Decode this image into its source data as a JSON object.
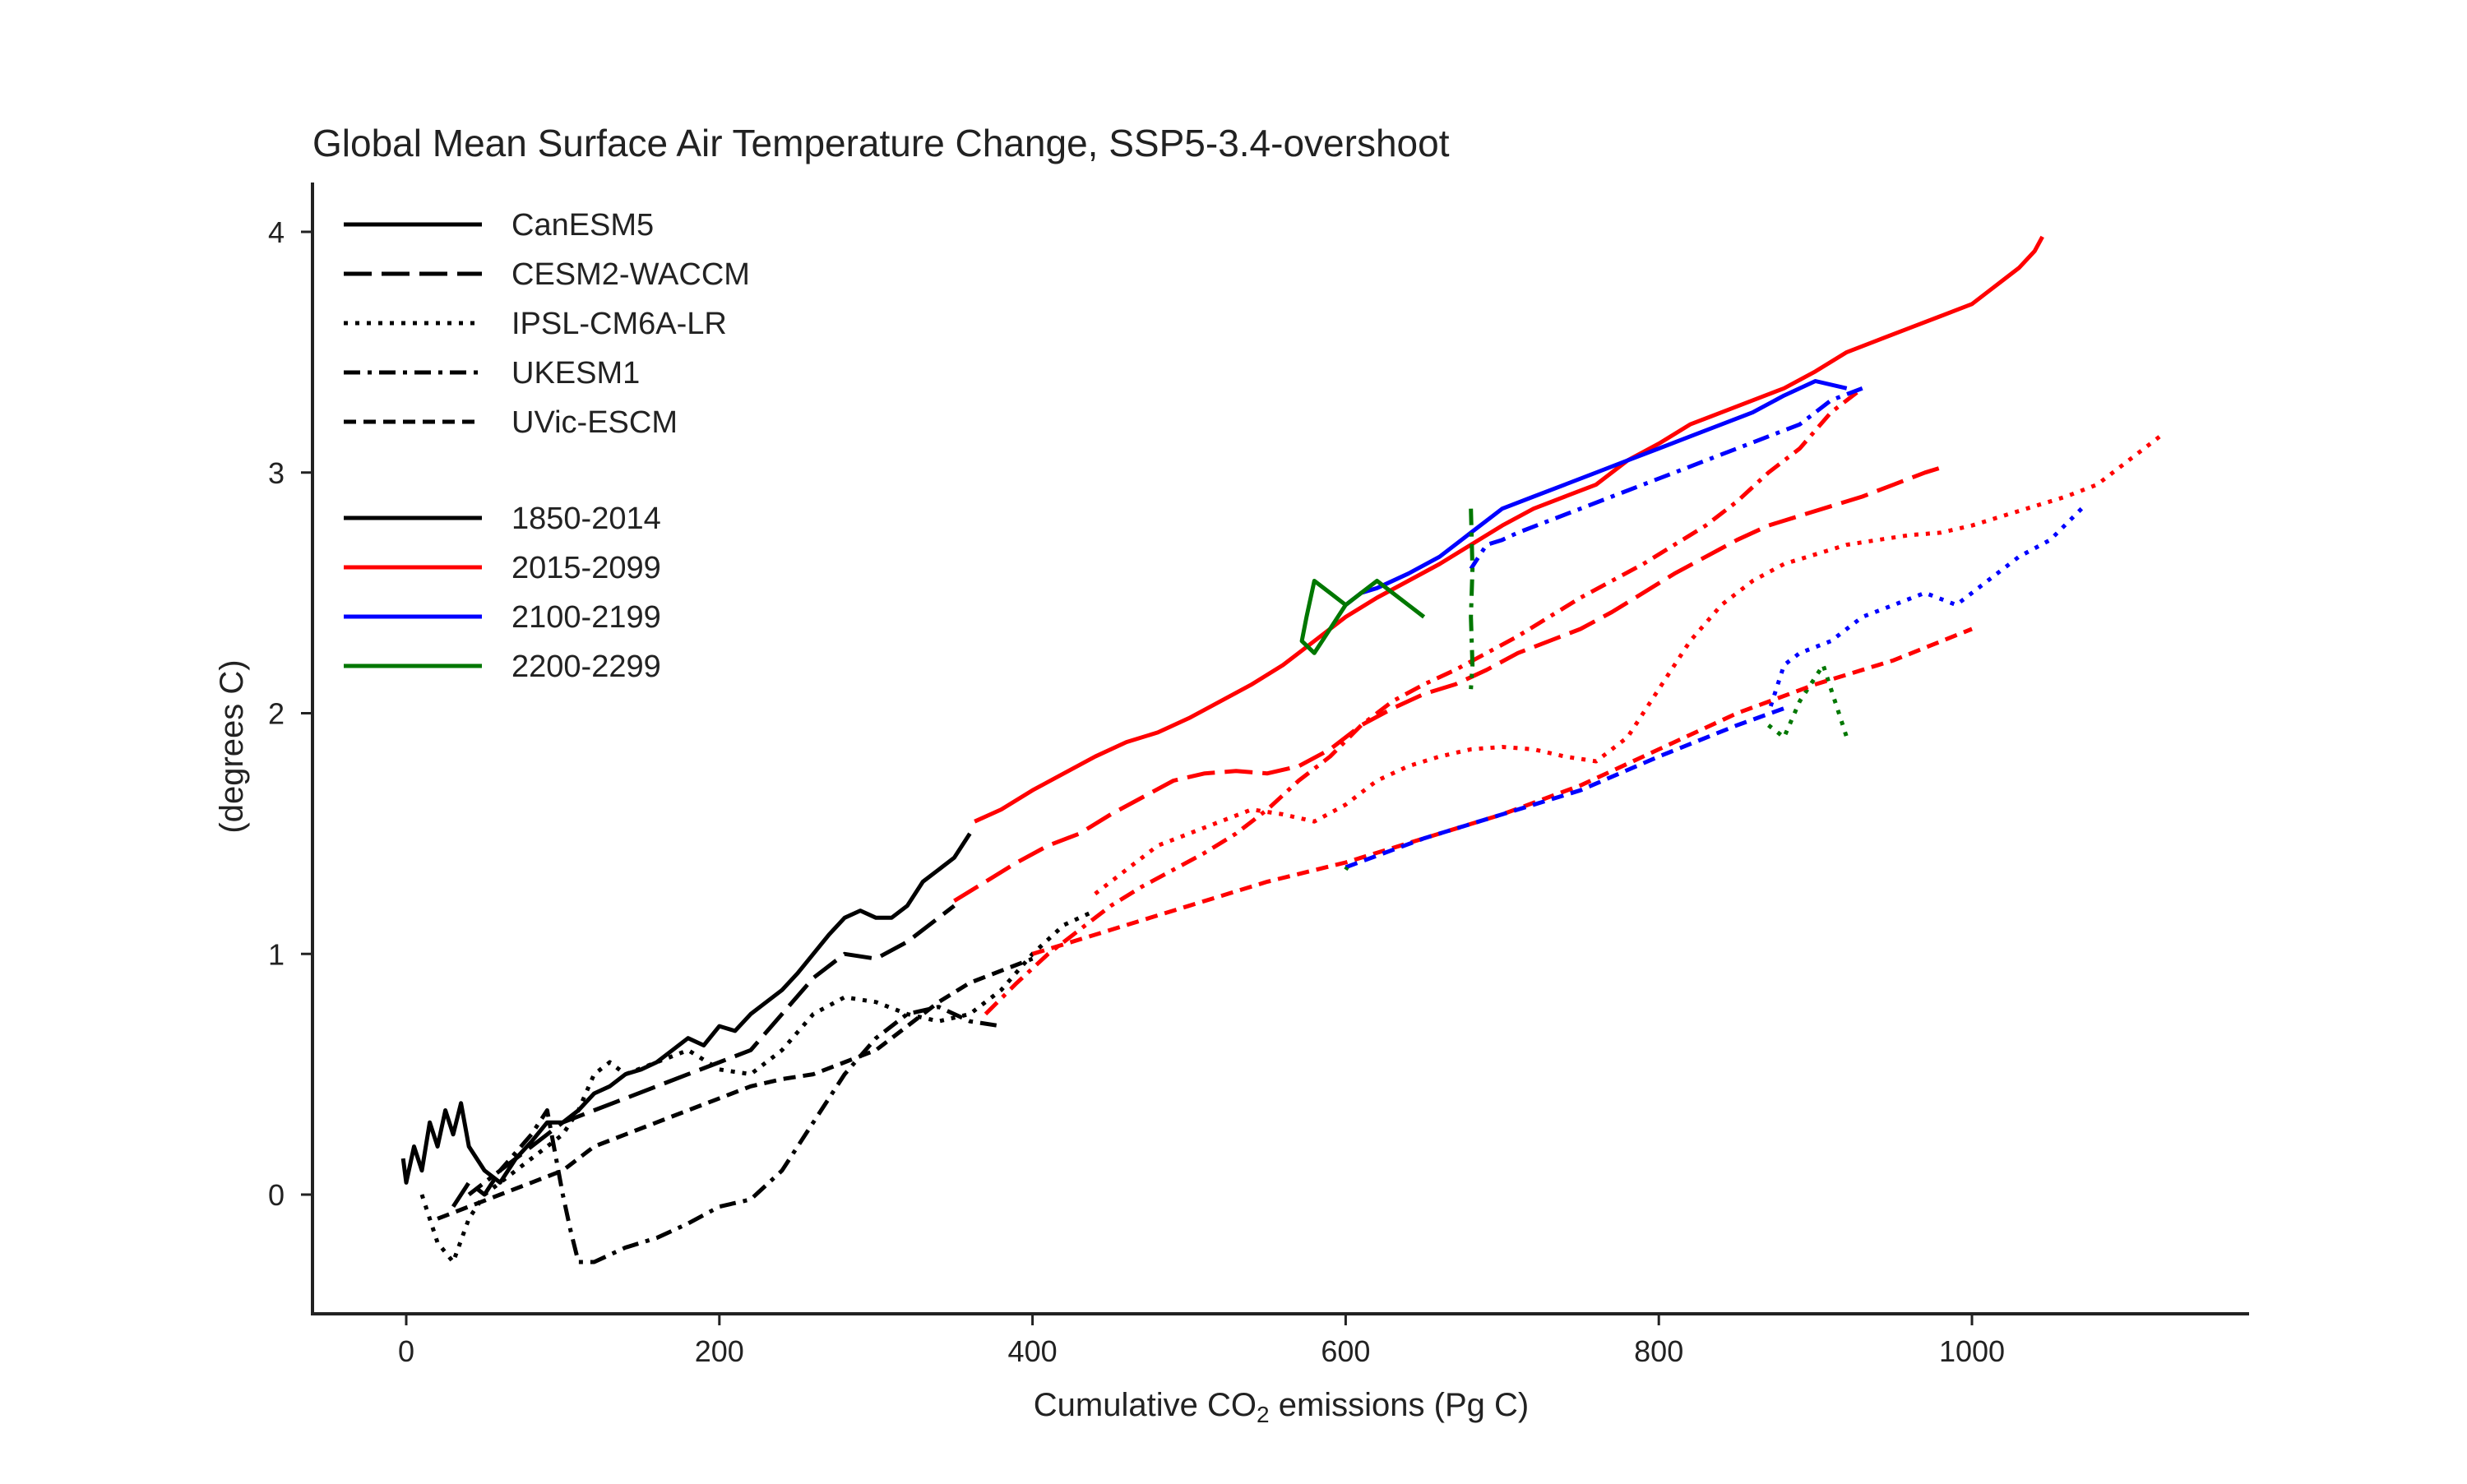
{
  "chart_data": {
    "type": "line",
    "title": "Global Mean Surface Air Temperature Change, SSP5-3.4-overshoot",
    "xlabel_main": "Cumulative CO",
    "xlabel_sub": "2",
    "xlabel_tail": " emissions (Pg C)",
    "ylabel": "(degrees C)",
    "xlim": [
      -60,
      1120
    ],
    "ylim": [
      -0.5,
      4.2
    ],
    "xticks": [
      0,
      200,
      400,
      600,
      800,
      1000
    ],
    "xtick_labels": [
      "0",
      "200",
      "400",
      "600",
      "800",
      "1000"
    ],
    "yticks": [
      0,
      1,
      2,
      3,
      4
    ],
    "ytick_labels": [
      "0",
      "1",
      "2",
      "3",
      "4"
    ],
    "grid": false,
    "legend_placement": "top-left",
    "legend": {
      "models": [
        {
          "name": "CanESM5",
          "style": "solid"
        },
        {
          "name": "CESM2-WACCM",
          "style": "longdash"
        },
        {
          "name": "IPSL-CM6A-LR",
          "style": "dotted"
        },
        {
          "name": "UKESM1",
          "style": "dashdot"
        },
        {
          "name": "UVic-ESCM",
          "style": "dashed"
        }
      ],
      "periods": [
        {
          "name": "1850-2014",
          "color": "#000000"
        },
        {
          "name": "2015-2099",
          "color": "#ff0000"
        },
        {
          "name": "2100-2199",
          "color": "#0000ff"
        },
        {
          "name": "2200-2299",
          "color": "#007700"
        }
      ]
    },
    "series": [
      {
        "model": "CanESM5",
        "period": "1850-2014",
        "x": [
          -2,
          0,
          5,
          10,
          15,
          20,
          25,
          30,
          35,
          40,
          50,
          60,
          70,
          80,
          90,
          100,
          110,
          120,
          130,
          140,
          150,
          160,
          170,
          180,
          190,
          200,
          210,
          220,
          230,
          240,
          250,
          260,
          270,
          280,
          290,
          300,
          310,
          320,
          330,
          340,
          350,
          360
        ],
        "y": [
          0.15,
          0.05,
          0.2,
          0.1,
          0.3,
          0.2,
          0.35,
          0.25,
          0.38,
          0.2,
          0.1,
          0.05,
          0.15,
          0.22,
          0.3,
          0.3,
          0.35,
          0.42,
          0.45,
          0.5,
          0.52,
          0.55,
          0.6,
          0.65,
          0.62,
          0.7,
          0.68,
          0.75,
          0.8,
          0.85,
          0.92,
          1.0,
          1.08,
          1.15,
          1.18,
          1.15,
          1.15,
          1.2,
          1.3,
          1.35,
          1.4,
          1.5
        ]
      },
      {
        "model": "CanESM5",
        "period": "2015-2099",
        "x": [
          363,
          380,
          400,
          420,
          440,
          460,
          480,
          500,
          520,
          540,
          560,
          580,
          600,
          620,
          640,
          660,
          680,
          700,
          720,
          740,
          760,
          780,
          800,
          820,
          840,
          860,
          880,
          900,
          920,
          940,
          960,
          980,
          1000,
          1010,
          1020,
          1030,
          1040,
          1045
        ],
        "y": [
          1.55,
          1.6,
          1.68,
          1.75,
          1.82,
          1.88,
          1.92,
          1.98,
          2.05,
          2.12,
          2.2,
          2.3,
          2.4,
          2.48,
          2.55,
          2.62,
          2.7,
          2.78,
          2.85,
          2.9,
          2.95,
          3.05,
          3.12,
          3.2,
          3.25,
          3.3,
          3.35,
          3.42,
          3.5,
          3.55,
          3.6,
          3.65,
          3.7,
          3.75,
          3.8,
          3.85,
          3.92,
          3.98
        ]
      },
      {
        "model": "CanESM5",
        "period": "2100-2199",
        "x": [
          920,
          900,
          880,
          860,
          840,
          820,
          800,
          780,
          760,
          740,
          720,
          700,
          680,
          660,
          640,
          620,
          610,
          600
        ],
        "y": [
          3.35,
          3.38,
          3.32,
          3.25,
          3.2,
          3.15,
          3.1,
          3.05,
          3.0,
          2.95,
          2.9,
          2.85,
          2.75,
          2.65,
          2.58,
          2.52,
          2.5,
          2.45
        ]
      },
      {
        "model": "CanESM5",
        "period": "2200-2299",
        "x": [
          600,
          590,
          580,
          575,
          572,
          580,
          590,
          600,
          610,
          620,
          630,
          640,
          650
        ],
        "y": [
          2.45,
          2.5,
          2.55,
          2.4,
          2.3,
          2.25,
          2.35,
          2.45,
          2.5,
          2.55,
          2.5,
          2.45,
          2.4
        ]
      },
      {
        "model": "CESM2-WACCM",
        "period": "1850-2014",
        "x": [
          30,
          40,
          50,
          60,
          70,
          80,
          90,
          100,
          120,
          140,
          160,
          180,
          200,
          220,
          240,
          260,
          280,
          300,
          320,
          340,
          350
        ],
        "y": [
          -0.05,
          0.05,
          0.0,
          0.1,
          0.15,
          0.2,
          0.25,
          0.3,
          0.35,
          0.4,
          0.45,
          0.5,
          0.55,
          0.6,
          0.75,
          0.9,
          1.0,
          0.98,
          1.05,
          1.15,
          1.2
        ]
      },
      {
        "model": "CESM2-WACCM",
        "period": "2015-2099",
        "x": [
          350,
          370,
          390,
          410,
          430,
          450,
          470,
          490,
          510,
          530,
          550,
          570,
          590,
          610,
          630,
          650,
          670,
          690,
          710,
          730,
          750,
          770,
          790,
          810,
          830,
          850,
          870,
          890,
          910,
          930,
          950,
          970,
          980
        ],
        "y": [
          1.22,
          1.3,
          1.38,
          1.45,
          1.5,
          1.58,
          1.65,
          1.72,
          1.75,
          1.76,
          1.75,
          1.78,
          1.85,
          1.95,
          2.02,
          2.08,
          2.12,
          2.18,
          2.25,
          2.3,
          2.35,
          2.42,
          2.5,
          2.58,
          2.65,
          2.72,
          2.78,
          2.82,
          2.86,
          2.9,
          2.95,
          3.0,
          3.02
        ]
      },
      {
        "model": "IPSL-CM6A-LR",
        "period": "1850-2014",
        "x": [
          10,
          20,
          30,
          40,
          50,
          60,
          70,
          80,
          90,
          100,
          110,
          120,
          130,
          140,
          160,
          180,
          200,
          220,
          240,
          260,
          280,
          300,
          320,
          340,
          360,
          380,
          400,
          420,
          440
        ],
        "y": [
          0.0,
          -0.2,
          -0.28,
          -0.1,
          0.0,
          0.05,
          0.1,
          0.15,
          0.2,
          0.25,
          0.35,
          0.5,
          0.55,
          0.5,
          0.55,
          0.6,
          0.52,
          0.5,
          0.6,
          0.75,
          0.82,
          0.8,
          0.75,
          0.72,
          0.75,
          0.85,
          1.0,
          1.12,
          1.18
        ]
      },
      {
        "model": "IPSL-CM6A-LR",
        "period": "2015-2099",
        "x": [
          440,
          460,
          480,
          500,
          520,
          540,
          560,
          580,
          600,
          620,
          640,
          660,
          680,
          700,
          720,
          740,
          760,
          780,
          800,
          820,
          840,
          860,
          880,
          900,
          920,
          940,
          960,
          980,
          1000,
          1020,
          1040,
          1060,
          1080,
          1100,
          1120
        ],
        "y": [
          1.25,
          1.35,
          1.45,
          1.5,
          1.55,
          1.6,
          1.58,
          1.55,
          1.62,
          1.72,
          1.78,
          1.82,
          1.85,
          1.86,
          1.85,
          1.82,
          1.8,
          1.9,
          2.1,
          2.3,
          2.45,
          2.55,
          2.62,
          2.66,
          2.7,
          2.72,
          2.74,
          2.75,
          2.78,
          2.82,
          2.86,
          2.9,
          2.95,
          3.05,
          3.15
        ]
      },
      {
        "model": "IPSL-CM6A-LR",
        "period": "2100-2199",
        "x": [
          1070,
          1050,
          1030,
          1010,
          990,
          970,
          950,
          930,
          910,
          890,
          880,
          875,
          870
        ],
        "y": [
          2.85,
          2.72,
          2.65,
          2.55,
          2.45,
          2.5,
          2.45,
          2.4,
          2.3,
          2.25,
          2.2,
          2.1,
          2.0
        ]
      },
      {
        "model": "IPSL-CM6A-LR",
        "period": "2200-2299",
        "x": [
          870,
          880,
          890,
          900,
          905,
          910,
          915,
          920
        ],
        "y": [
          1.95,
          1.9,
          2.05,
          2.15,
          2.2,
          2.1,
          2.0,
          1.9
        ]
      },
      {
        "model": "UKESM1",
        "period": "1850-2014",
        "x": [
          40,
          60,
          80,
          90,
          100,
          105,
          110,
          120,
          140,
          160,
          180,
          200,
          220,
          240,
          260,
          280,
          300,
          320,
          340,
          360,
          380
        ],
        "y": [
          0.0,
          0.1,
          0.25,
          0.35,
          0.0,
          -0.15,
          -0.28,
          -0.28,
          -0.22,
          -0.18,
          -0.12,
          -0.05,
          -0.02,
          0.1,
          0.3,
          0.5,
          0.65,
          0.75,
          0.78,
          0.72,
          0.7
        ]
      },
      {
        "model": "UKESM1",
        "period": "2015-2099",
        "x": [
          370,
          390,
          410,
          430,
          450,
          470,
          490,
          510,
          530,
          550,
          570,
          590,
          610,
          630,
          650,
          670,
          690,
          710,
          730,
          750,
          770,
          790,
          810,
          830,
          850,
          870,
          890,
          910,
          930
        ],
        "y": [
          0.75,
          0.88,
          1.0,
          1.1,
          1.2,
          1.28,
          1.35,
          1.42,
          1.5,
          1.6,
          1.72,
          1.82,
          1.95,
          2.05,
          2.12,
          2.18,
          2.25,
          2.32,
          2.4,
          2.48,
          2.55,
          2.62,
          2.7,
          2.78,
          2.88,
          3.0,
          3.1,
          3.25,
          3.35
        ]
      },
      {
        "model": "UKESM1",
        "period": "2100-2199",
        "x": [
          930,
          910,
          890,
          870,
          850,
          830,
          810,
          790,
          770,
          750,
          730,
          710,
          700,
          690,
          685,
          680
        ],
        "y": [
          3.35,
          3.3,
          3.2,
          3.15,
          3.1,
          3.05,
          3.0,
          2.95,
          2.9,
          2.85,
          2.8,
          2.75,
          2.72,
          2.7,
          2.65,
          2.6
        ]
      },
      {
        "model": "UKESM1",
        "period": "2200-2299",
        "x": [
          680,
          681,
          680,
          681,
          680
        ],
        "y": [
          2.85,
          2.6,
          2.4,
          2.2,
          2.1
        ]
      },
      {
        "model": "UVic-ESCM",
        "period": "1850-2014",
        "x": [
          20,
          40,
          60,
          80,
          100,
          120,
          140,
          160,
          180,
          200,
          220,
          240,
          260,
          280,
          300,
          320,
          340,
          360,
          380,
          400
        ],
        "y": [
          -0.1,
          -0.05,
          0.0,
          0.05,
          0.1,
          0.2,
          0.25,
          0.3,
          0.35,
          0.4,
          0.45,
          0.48,
          0.5,
          0.55,
          0.6,
          0.7,
          0.8,
          0.88,
          0.93,
          0.98
        ]
      },
      {
        "model": "UVic-ESCM",
        "period": "2015-2099",
        "x": [
          400,
          450,
          500,
          550,
          600,
          650,
          700,
          750,
          800,
          850,
          900,
          950,
          1000
        ],
        "y": [
          1.0,
          1.1,
          1.2,
          1.3,
          1.38,
          1.48,
          1.58,
          1.7,
          1.85,
          2.0,
          2.12,
          2.22,
          2.35
        ]
      },
      {
        "model": "UVic-ESCM",
        "period": "2100-2199",
        "x": [
          600,
          650,
          700,
          750,
          800,
          850,
          880
        ],
        "y": [
          1.36,
          1.48,
          1.58,
          1.68,
          1.82,
          1.95,
          2.02
        ]
      },
      {
        "model": "UVic-ESCM",
        "period": "2200-2299",
        "x": [
          600,
          601
        ],
        "y": [
          1.35,
          1.36
        ]
      }
    ]
  }
}
